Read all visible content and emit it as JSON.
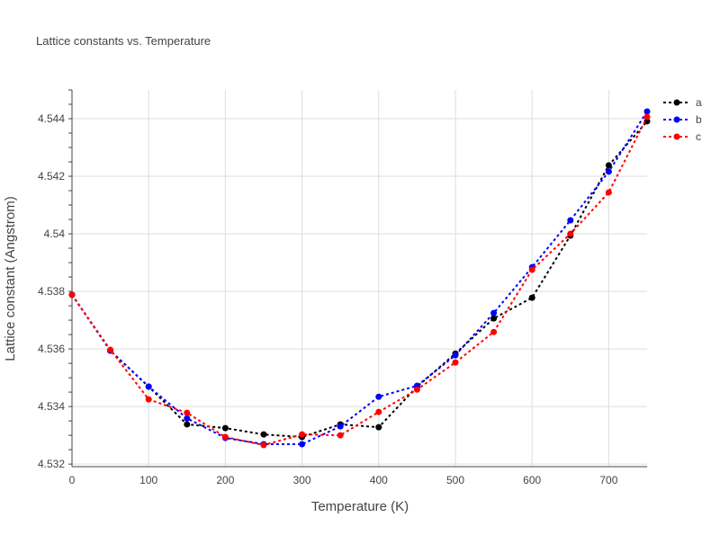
{
  "chart_data": {
    "type": "line",
    "title": "Lattice constants vs. Temperature",
    "xlabel": "Temperature (K)",
    "ylabel": "Lattice constant (Angstrom)",
    "xlim": [
      0,
      750
    ],
    "ylim": [
      4.53191,
      4.545
    ],
    "xticks": [
      0,
      100,
      200,
      300,
      400,
      500,
      600,
      700
    ],
    "yticks": [
      4.532,
      4.534,
      4.536,
      4.538,
      4.54,
      4.542,
      4.544
    ],
    "ytick_labels": [
      "4.532",
      "4.534",
      "4.536",
      "4.538",
      "4.54",
      "4.542",
      "4.544"
    ],
    "grid": true,
    "legend_position": "top-right",
    "x": [
      0,
      50,
      100,
      150,
      200,
      250,
      300,
      350,
      400,
      450,
      500,
      550,
      600,
      650,
      700,
      750
    ],
    "series": [
      {
        "name": "a",
        "color": "#000000",
        "values": [
          4.53788,
          4.53594,
          4.53469,
          4.53338,
          4.53325,
          4.53303,
          4.53294,
          4.53338,
          4.53328,
          4.53469,
          4.53584,
          4.53706,
          4.53778,
          4.53994,
          4.54238,
          4.54391
        ]
      },
      {
        "name": "b",
        "color": "#0000ff",
        "values": [
          4.53788,
          4.53594,
          4.53469,
          4.53359,
          4.53291,
          4.53269,
          4.53269,
          4.53331,
          4.53434,
          4.53472,
          4.53578,
          4.53725,
          4.53884,
          4.54047,
          4.54216,
          4.54425
        ]
      },
      {
        "name": "c",
        "color": "#ff0000",
        "values": [
          4.53788,
          4.53597,
          4.53425,
          4.53378,
          4.53294,
          4.53266,
          4.53303,
          4.533,
          4.53381,
          4.53459,
          4.53553,
          4.53659,
          4.53875,
          4.54,
          4.54144,
          4.54406
        ]
      }
    ]
  }
}
